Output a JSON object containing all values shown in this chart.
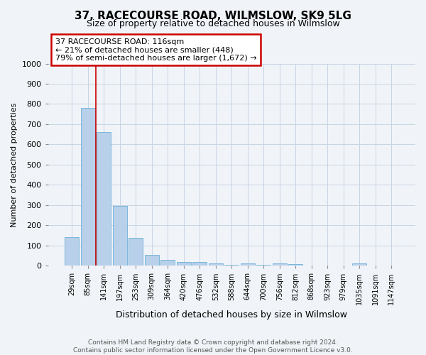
{
  "title1": "37, RACECOURSE ROAD, WILMSLOW, SK9 5LG",
  "title2": "Size of property relative to detached houses in Wilmslow",
  "xlabel": "Distribution of detached houses by size in Wilmslow",
  "ylabel": "Number of detached properties",
  "bar_labels": [
    "29sqm",
    "85sqm",
    "141sqm",
    "197sqm",
    "253sqm",
    "309sqm",
    "364sqm",
    "420sqm",
    "476sqm",
    "532sqm",
    "588sqm",
    "644sqm",
    "700sqm",
    "756sqm",
    "812sqm",
    "868sqm",
    "923sqm",
    "979sqm",
    "1035sqm",
    "1091sqm",
    "1147sqm"
  ],
  "bar_values": [
    140,
    780,
    660,
    295,
    138,
    55,
    30,
    18,
    18,
    12,
    5,
    10,
    5,
    12,
    9,
    0,
    0,
    0,
    10,
    0,
    0
  ],
  "bar_color": "#b8d0ea",
  "bar_edge_color": "#6aaed6",
  "ylim": [
    0,
    1000
  ],
  "yticks": [
    0,
    100,
    200,
    300,
    400,
    500,
    600,
    700,
    800,
    900,
    1000
  ],
  "vline_x": 1.5,
  "vline_color": "#cc0000",
  "annotation_line1": "37 RACECOURSE ROAD: 116sqm",
  "annotation_line2": "← 21% of detached houses are smaller (448)",
  "annotation_line3": "79% of semi-detached houses are larger (1,672) →",
  "annotation_box_color": "#cc0000",
  "footer1": "Contains HM Land Registry data © Crown copyright and database right 2024.",
  "footer2": "Contains public sector information licensed under the Open Government Licence v3.0.",
  "bg_color": "#f0f4f8",
  "plot_bg_color": "#f0f4f8",
  "grid_color": "#c8d4e4",
  "title1_fontsize": 11,
  "title2_fontsize": 9,
  "ylabel_fontsize": 8,
  "xlabel_fontsize": 9
}
